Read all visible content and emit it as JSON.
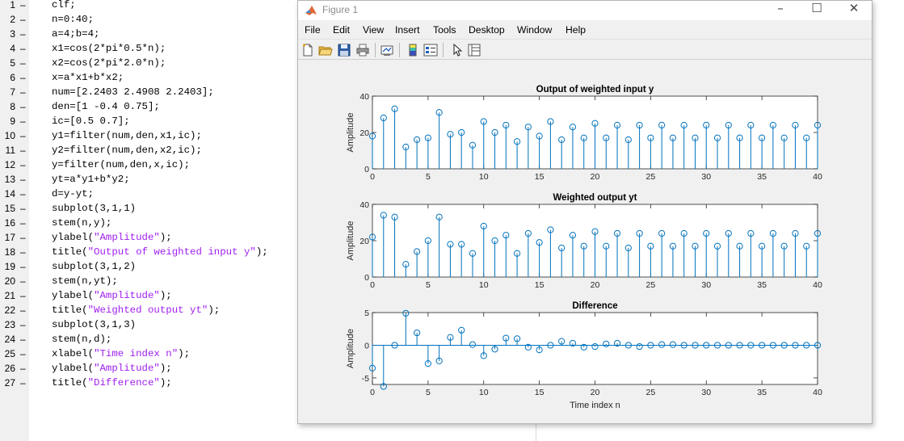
{
  "editor": {
    "lines": [
      {
        "num": "1",
        "code": [
          [
            "clf;",
            false
          ]
        ]
      },
      {
        "num": "2",
        "code": [
          [
            "n=0:40;",
            false
          ]
        ]
      },
      {
        "num": "3",
        "code": [
          [
            "a=4;b=4;",
            false
          ]
        ]
      },
      {
        "num": "4",
        "code": [
          [
            "x1=cos(2*pi*0.5*n);",
            false
          ]
        ]
      },
      {
        "num": "5",
        "code": [
          [
            "x2=cos(2*pi*2.0*n);",
            false
          ]
        ]
      },
      {
        "num": "6",
        "code": [
          [
            "x=a*x1+b*x2;",
            false
          ]
        ]
      },
      {
        "num": "7",
        "code": [
          [
            "num=[2.2403 2.4908 2.2403];",
            false
          ]
        ]
      },
      {
        "num": "8",
        "code": [
          [
            "den=[1 -0.4 0.75];",
            false
          ]
        ]
      },
      {
        "num": "9",
        "code": [
          [
            "ic=[0.5 0.7];",
            false
          ]
        ]
      },
      {
        "num": "10",
        "code": [
          [
            "y1=filter(num,den,x1,ic);",
            false
          ]
        ]
      },
      {
        "num": "11",
        "code": [
          [
            "y2=filter(num,den,x2,ic);",
            false
          ]
        ]
      },
      {
        "num": "12",
        "code": [
          [
            "y=filter(num,den,x,ic);",
            false
          ]
        ]
      },
      {
        "num": "13",
        "code": [
          [
            "yt=a*y1+b*y2;",
            false
          ]
        ]
      },
      {
        "num": "14",
        "code": [
          [
            "d=y-yt;",
            false
          ]
        ]
      },
      {
        "num": "15",
        "code": [
          [
            "subplot(3,1,1)",
            false
          ]
        ]
      },
      {
        "num": "16",
        "code": [
          [
            "stem(n,y);",
            false
          ]
        ]
      },
      {
        "num": "17",
        "code": [
          [
            "ylabel(",
            false
          ],
          [
            "\"Amplitude\"",
            true
          ],
          [
            ");",
            false
          ]
        ]
      },
      {
        "num": "18",
        "code": [
          [
            "title(",
            false
          ],
          [
            "\"Output of weighted input y\"",
            true
          ],
          [
            ");",
            false
          ]
        ]
      },
      {
        "num": "19",
        "code": [
          [
            "subplot(3,1,2)",
            false
          ]
        ]
      },
      {
        "num": "20",
        "code": [
          [
            "stem(n,yt);",
            false
          ]
        ]
      },
      {
        "num": "21",
        "code": [
          [
            "ylabel(",
            false
          ],
          [
            "\"Amplitude\"",
            true
          ],
          [
            ");",
            false
          ]
        ]
      },
      {
        "num": "22",
        "code": [
          [
            "title(",
            false
          ],
          [
            "\"Weighted output yt\"",
            true
          ],
          [
            ");",
            false
          ]
        ]
      },
      {
        "num": "23",
        "code": [
          [
            "subplot(3,1,3)",
            false
          ]
        ]
      },
      {
        "num": "24",
        "code": [
          [
            "stem(n,d);",
            false
          ]
        ]
      },
      {
        "num": "25",
        "code": [
          [
            "xlabel(",
            false
          ],
          [
            "\"Time index n\"",
            true
          ],
          [
            ");",
            false
          ]
        ]
      },
      {
        "num": "26",
        "code": [
          [
            "ylabel(",
            false
          ],
          [
            "\"Amplitude\"",
            true
          ],
          [
            ");",
            false
          ]
        ]
      },
      {
        "num": "27",
        "code": [
          [
            "title(",
            false
          ],
          [
            "\"Difference\"",
            true
          ],
          [
            ");",
            false
          ]
        ]
      }
    ],
    "line_dash": "–"
  },
  "figure": {
    "title": "Figure 1",
    "menus": [
      "File",
      "Edit",
      "View",
      "Insert",
      "Tools",
      "Desktop",
      "Window",
      "Help"
    ],
    "dock_glyph": "↘",
    "window_buttons": {
      "minimize": "–",
      "maximize": "☐",
      "close": "✕"
    },
    "toolbar_icons": [
      "new-figure-icon",
      "open-file-icon",
      "save-icon",
      "print-icon",
      "link-plot-icon",
      "insert-colorbar-icon",
      "insert-legend-icon",
      "edit-plot-arrow-icon",
      "property-inspector-icon"
    ]
  },
  "chart_data": [
    {
      "type": "stem",
      "title": "Output of weighted input y",
      "ylabel": "Amplitude",
      "xlabel": "",
      "xlim": [
        0,
        40
      ],
      "ylim": [
        0,
        40
      ],
      "xticks": [
        "0",
        "5",
        "10",
        "15",
        "20",
        "25",
        "30",
        "35",
        "40"
      ],
      "yticks": [
        "0",
        "20",
        "40"
      ],
      "color": "#0072bd",
      "x": [
        0,
        1,
        2,
        3,
        4,
        5,
        6,
        7,
        8,
        9,
        10,
        11,
        12,
        13,
        14,
        15,
        16,
        17,
        18,
        19,
        20,
        21,
        22,
        23,
        24,
        25,
        26,
        27,
        28,
        29,
        30,
        31,
        32,
        33,
        34,
        35,
        36,
        37,
        38,
        39,
        40
      ],
      "values": [
        18,
        28,
        33,
        12,
        16,
        17,
        31,
        19,
        20,
        13,
        26,
        20,
        24,
        15,
        23,
        18,
        26,
        16,
        23,
        17,
        25,
        17,
        24,
        16,
        24,
        17,
        24,
        17,
        24,
        17,
        24,
        17,
        24,
        17,
        24,
        17,
        24,
        17,
        24,
        17,
        24
      ]
    },
    {
      "type": "stem",
      "title": "Weighted output yt",
      "ylabel": "Amplitude",
      "xlabel": "",
      "xlim": [
        0,
        40
      ],
      "ylim": [
        0,
        40
      ],
      "xticks": [
        "0",
        "5",
        "10",
        "15",
        "20",
        "25",
        "30",
        "35",
        "40"
      ],
      "yticks": [
        "0",
        "20",
        "40"
      ],
      "color": "#0072bd",
      "x": [
        0,
        1,
        2,
        3,
        4,
        5,
        6,
        7,
        8,
        9,
        10,
        11,
        12,
        13,
        14,
        15,
        16,
        17,
        18,
        19,
        20,
        21,
        22,
        23,
        24,
        25,
        26,
        27,
        28,
        29,
        30,
        31,
        32,
        33,
        34,
        35,
        36,
        37,
        38,
        39,
        40
      ],
      "values": [
        22,
        34,
        33,
        7,
        14,
        20,
        33,
        18,
        18,
        13,
        28,
        20,
        23,
        13,
        24,
        19,
        26,
        16,
        23,
        17,
        25,
        17,
        24,
        16,
        24,
        17,
        24,
        17,
        24,
        17,
        24,
        17,
        24,
        17,
        24,
        17,
        24,
        17,
        24,
        17,
        24
      ]
    },
    {
      "type": "stem",
      "title": "Difference",
      "ylabel": "Amplitude",
      "xlabel": "Time index n",
      "xlim": [
        0,
        40
      ],
      "ylim": [
        -6,
        5
      ],
      "xticks": [
        "0",
        "5",
        "10",
        "15",
        "20",
        "25",
        "30",
        "35",
        "40"
      ],
      "yticks": [
        "-5",
        "0",
        "5"
      ],
      "ytick_values": [
        -5,
        0,
        5
      ],
      "color": "#0072bd",
      "x": [
        0,
        1,
        2,
        3,
        4,
        5,
        6,
        7,
        8,
        9,
        10,
        11,
        12,
        13,
        14,
        15,
        16,
        17,
        18,
        19,
        20,
        21,
        22,
        23,
        24,
        25,
        26,
        27,
        28,
        29,
        30,
        31,
        32,
        33,
        34,
        35,
        36,
        37,
        38,
        39,
        40
      ],
      "values": [
        -3.5,
        -6.3,
        0,
        4.9,
        1.9,
        -2.8,
        -2.4,
        1.2,
        2.3,
        0.1,
        -1.6,
        -0.6,
        1.1,
        1.0,
        -0.3,
        -0.7,
        0,
        0.6,
        0.3,
        -0.3,
        -0.2,
        0.2,
        0.3,
        0,
        -0.2,
        0,
        0.1,
        0.1,
        0,
        0,
        0,
        0,
        0,
        0,
        0,
        0,
        0,
        0,
        0,
        0,
        0
      ]
    }
  ]
}
